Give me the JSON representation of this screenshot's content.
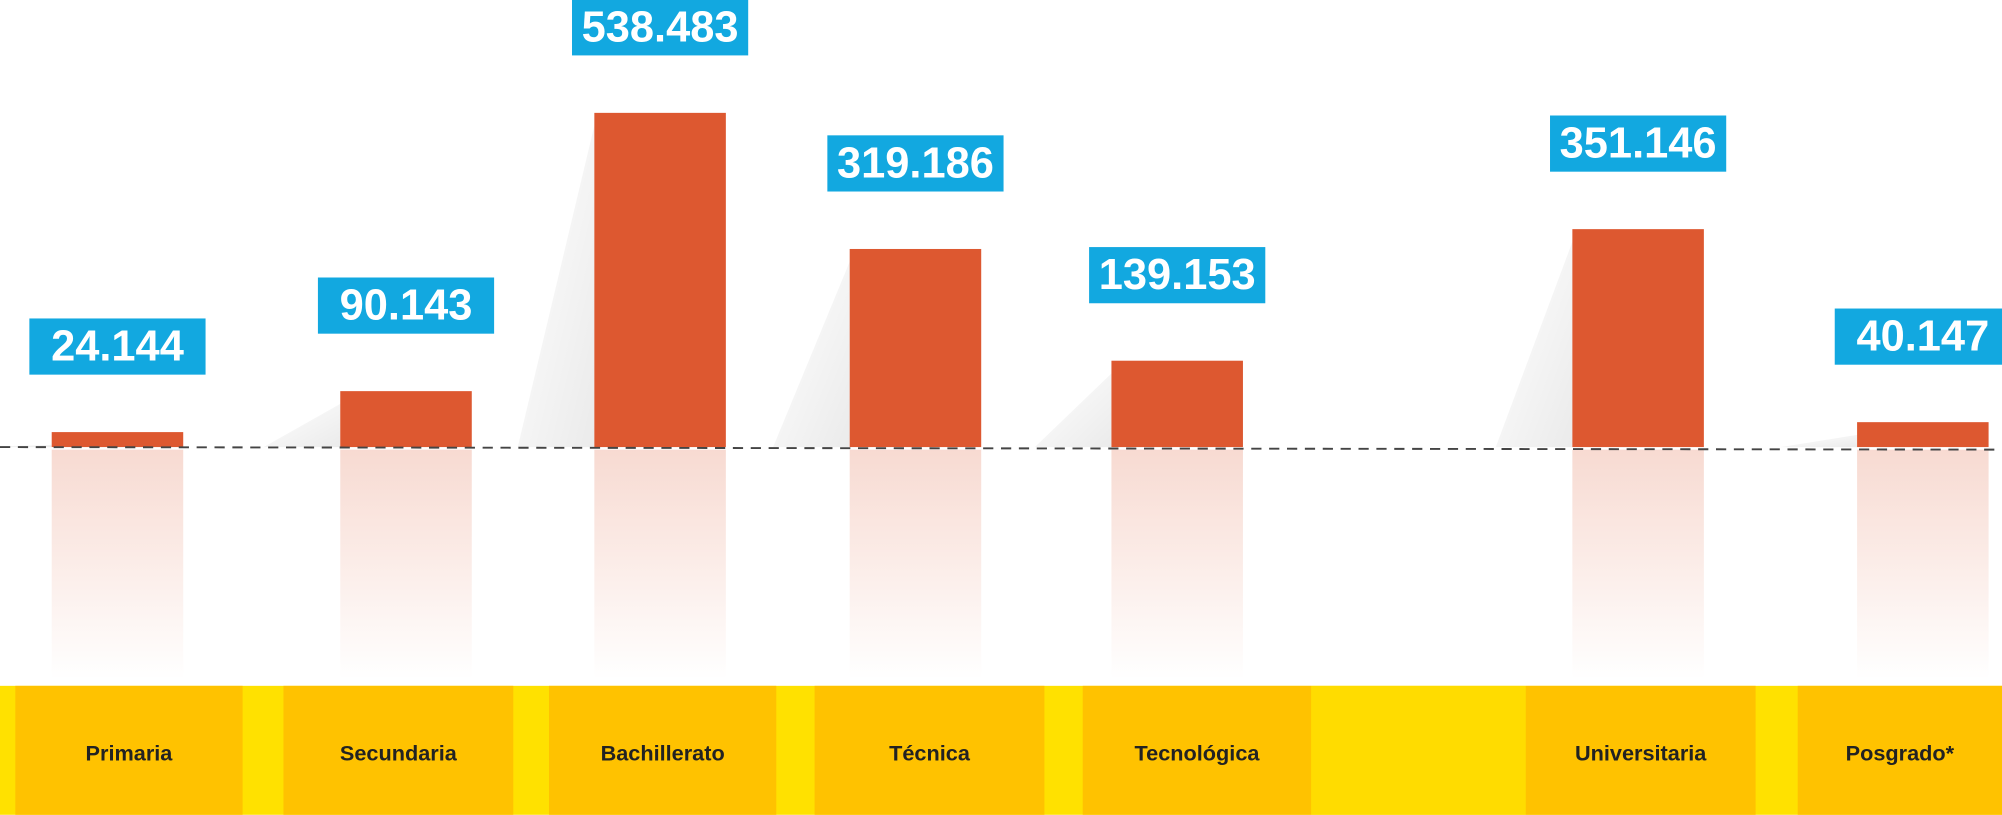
{
  "chart_data": {
    "type": "bar",
    "categories": [
      "Primaria",
      "Secundaria",
      "Bachillerato",
      "Técnica",
      "Tecnológica",
      null,
      "Universitaria",
      "Posgrado*"
    ],
    "values": [
      24144,
      90143,
      538483,
      319186,
      139153,
      null,
      351146,
      40147
    ],
    "value_labels": [
      "24.144",
      "90.143",
      "538.483",
      "319.186",
      "139.153",
      null,
      "351.146",
      "40.147"
    ],
    "color": "#dd5830",
    "label_color": "#12a8e0",
    "ylim": [
      0,
      720000
    ]
  }
}
